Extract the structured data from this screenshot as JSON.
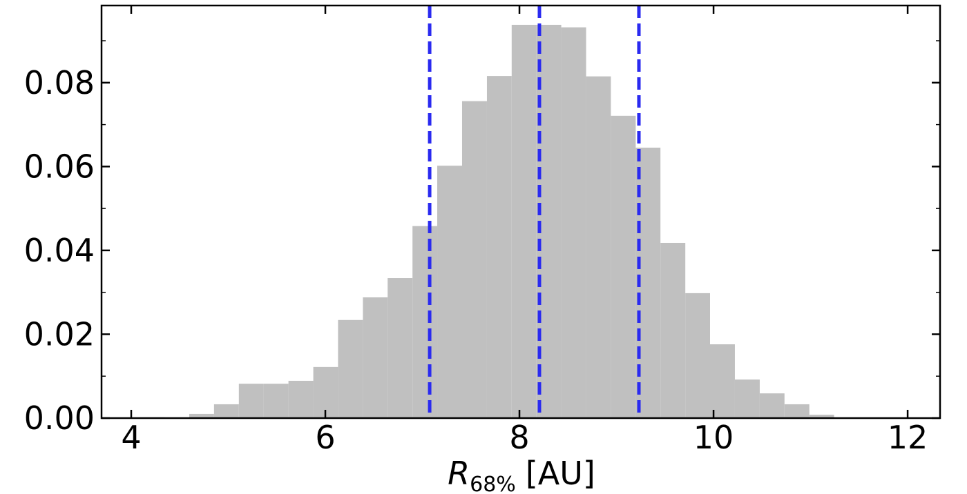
{
  "chart_data": {
    "type": "histogram",
    "xlabel": {
      "symbol": "R",
      "subscript": "68%",
      "unit": "[AU]"
    },
    "bins": [
      4.087,
      4.342,
      4.598,
      4.853,
      5.109,
      5.364,
      5.62,
      5.876,
      6.131,
      6.387,
      6.642,
      6.898,
      7.153,
      7.409,
      7.665,
      7.92,
      8.176,
      8.431,
      8.687,
      8.942,
      9.198,
      9.453,
      9.709,
      9.964,
      10.22,
      10.476,
      10.731,
      10.987,
      11.242
    ],
    "values": [
      0.0002,
      0,
      0.001,
      0.0033,
      0.0082,
      0.0082,
      0.0089,
      0.0122,
      0.0234,
      0.0288,
      0.0334,
      0.0458,
      0.0602,
      0.0756,
      0.0816,
      0.0938,
      0.0938,
      0.0932,
      0.0815,
      0.0721,
      0.0645,
      0.0418,
      0.0298,
      0.0176,
      0.0092,
      0.0059,
      0.0033,
      0.0008
    ],
    "color": "#c0c0c0",
    "vlines": {
      "values": [
        7.075,
        8.206,
        9.231
      ],
      "color": "#2a2af0",
      "style": "dashed"
    },
    "xlim": [
      3.694,
      12.334
    ],
    "xticks": [
      4,
      6,
      8,
      10,
      12
    ],
    "ylim": [
      0,
      0.0984
    ],
    "yticks": [
      {
        "value": 0,
        "label": "0.00"
      },
      {
        "value": 0.02,
        "label": "0.02"
      },
      {
        "value": 0.04,
        "label": "0.04"
      },
      {
        "value": 0.06,
        "label": "0.06"
      },
      {
        "value": 0.08,
        "label": "0.08"
      }
    ],
    "yminor_ticks": [
      0.01,
      0.03,
      0.05,
      0.07,
      0.09
    ],
    "grid": false
  }
}
